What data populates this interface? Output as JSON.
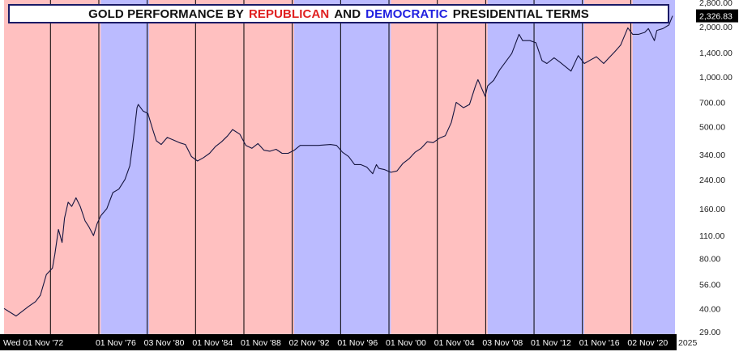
{
  "chart_data": {
    "type": "line",
    "title": {
      "parts": [
        "GOLD PERFORMANCE BY",
        "REPUBLICAN",
        "AND",
        "DEMOCRATIC",
        "PRESIDENTIAL TERMS"
      ]
    },
    "y_scale": "log",
    "ylim": [
      28,
      2900
    ],
    "y_ticks": [
      "2,800.00",
      "2,000.00",
      "1,400.00",
      "1,000.00",
      "700.00",
      "500.00",
      "340.00",
      "240.00",
      "160.00",
      "110.00",
      "80.00",
      "56.00",
      "40.00",
      "29.00"
    ],
    "y_tick_values": [
      2800,
      2000,
      1400,
      1000,
      700,
      500,
      340,
      240,
      160,
      110,
      80,
      56,
      40,
      29
    ],
    "last_price": "2,326.83",
    "x_range": [
      1969.0,
      2024.5
    ],
    "x_tick_labels": [
      "Wed 01 Nov '72",
      "01 Nov '76",
      "03 Nov '80",
      "01 Nov '84",
      "01 Nov '88",
      "02 Nov '92",
      "01 Nov '96",
      "01 Nov '00",
      "01 Nov '04",
      "03 Nov '08",
      "01 Nov '12",
      "01 Nov '16",
      "02 Nov '20"
    ],
    "x_tick_years": [
      1972.84,
      1976.84,
      1980.84,
      1984.84,
      1988.84,
      1992.84,
      1996.84,
      2000.84,
      2004.84,
      2008.84,
      2012.84,
      2016.84,
      2020.84
    ],
    "x_axis_end_label": "2025",
    "terms": [
      {
        "party": "Republican",
        "start": 1969.0,
        "end": 1977.0
      },
      {
        "party": "Democratic",
        "start": 1977.0,
        "end": 1981.0
      },
      {
        "party": "Republican",
        "start": 1981.0,
        "end": 1993.0
      },
      {
        "party": "Democratic",
        "start": 1993.0,
        "end": 2001.0
      },
      {
        "party": "Republican",
        "start": 2001.0,
        "end": 2009.0
      },
      {
        "party": "Democratic",
        "start": 2009.0,
        "end": 2017.0
      },
      {
        "party": "Republican",
        "start": 2017.0,
        "end": 2021.0
      },
      {
        "party": "Democratic",
        "start": 2021.0,
        "end": 2024.5
      }
    ],
    "series": [
      {
        "x": [
          1969.0,
          1970.0,
          1971.0,
          1971.6,
          1972.0,
          1972.5,
          1973.0,
          1973.2,
          1973.5,
          1973.8,
          1974.0,
          1974.3,
          1974.6,
          1974.95,
          1975.3,
          1975.7,
          1976.0,
          1976.4,
          1976.7,
          1977.0,
          1977.5,
          1978.0,
          1978.5,
          1979.0,
          1979.4,
          1979.7,
          1980.0,
          1980.1,
          1980.5,
          1980.9,
          1981.3,
          1981.6,
          1982.0,
          1982.5,
          1983.0,
          1983.5,
          1984.0,
          1984.5,
          1985.0,
          1985.5,
          1986.0,
          1986.5,
          1987.0,
          1987.5,
          1987.9,
          1988.5,
          1989.0,
          1989.5,
          1990.0,
          1990.5,
          1991.0,
          1991.5,
          1992.0,
          1992.5,
          1993.0,
          1993.5,
          1994.0,
          1995.0,
          1996.0,
          1996.5,
          1997.0,
          1997.5,
          1998.0,
          1998.5,
          1999.0,
          1999.5,
          1999.8,
          2000.0,
          2000.5,
          2001.0,
          2001.5,
          2002.0,
          2002.5,
          2003.0,
          2003.5,
          2004.0,
          2004.5,
          2005.0,
          2005.5,
          2006.0,
          2006.4,
          2007.0,
          2007.5,
          2008.0,
          2008.2,
          2008.8,
          2009.0,
          2009.5,
          2010.0,
          2010.5,
          2011.0,
          2011.6,
          2011.9,
          2012.5,
          2013.0,
          2013.5,
          2013.9,
          2014.5,
          2015.0,
          2015.9,
          2016.5,
          2017.0,
          2017.5,
          2018.0,
          2018.6,
          2019.0,
          2019.5,
          2020.0,
          2020.6,
          2021.0,
          2021.5,
          2022.0,
          2022.3,
          2022.8,
          2023.0,
          2023.5,
          2024.0,
          2024.3
        ],
        "values": [
          40,
          36,
          41,
          44,
          48,
          64,
          70,
          85,
          120,
          100,
          140,
          175,
          165,
          186,
          165,
          135,
          125,
          110,
          130,
          145,
          160,
          200,
          210,
          240,
          290,
          420,
          650,
          680,
          620,
          600,
          480,
          410,
          390,
          430,
          415,
          400,
          390,
          330,
          310,
          325,
          345,
          380,
          405,
          440,
          480,
          450,
          385,
          370,
          395,
          360,
          355,
          365,
          345,
          345,
          360,
          385,
          385,
          385,
          390,
          385,
          350,
          330,
          295,
          295,
          285,
          260,
          295,
          280,
          275,
          265,
          270,
          300,
          320,
          350,
          370,
          405,
          400,
          425,
          440,
          530,
          700,
          650,
          680,
          880,
          960,
          760,
          880,
          950,
          1100,
          1230,
          1380,
          1800,
          1650,
          1650,
          1600,
          1250,
          1200,
          1300,
          1220,
          1080,
          1340,
          1200,
          1260,
          1320,
          1200,
          1290,
          1410,
          1550,
          1970,
          1800,
          1800,
          1850,
          1950,
          1650,
          1900,
          1950,
          2050,
          2326.83
        ]
      }
    ],
    "colors": {
      "republican": "#ffc0c0",
      "democratic": "#bbbbff",
      "line": "#151540",
      "divider": "#000000",
      "axis_bar": "#000000",
      "price_tag": "#000000"
    }
  }
}
